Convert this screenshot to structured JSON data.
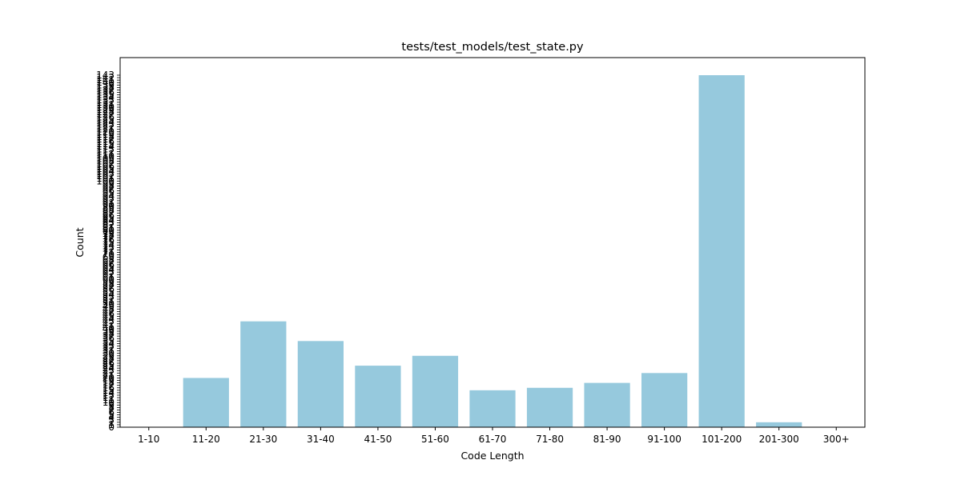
{
  "chart_data": {
    "type": "bar",
    "title": "tests/test_models/test_state.py",
    "xlabel": "Code Length",
    "ylabel": "Count",
    "categories": [
      "1-10",
      "11-20",
      "21-30",
      "31-40",
      "41-50",
      "51-60",
      "61-70",
      "71-80",
      "81-90",
      "91-100",
      "101-200",
      "201-300",
      "300+"
    ],
    "values": [
      0,
      20,
      43,
      35,
      25,
      29,
      15,
      16,
      18,
      22,
      143,
      2,
      0
    ],
    "ylim": [
      0,
      150
    ],
    "bar_color": "#96c9dd",
    "grid": false
  }
}
